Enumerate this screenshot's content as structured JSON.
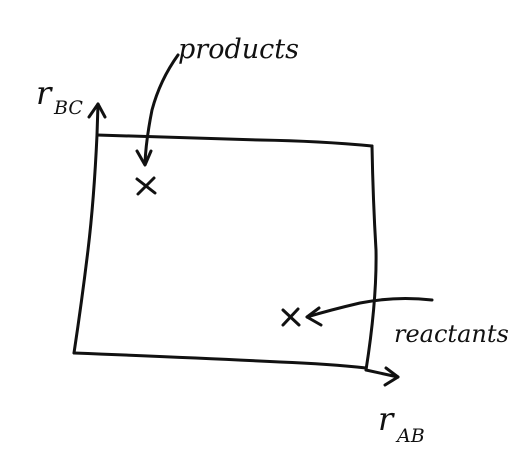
{
  "diagram": {
    "y_axis_label": "r",
    "y_axis_subscript": "BC",
    "x_axis_label": "r",
    "x_axis_subscript": "AB",
    "products_label": "products",
    "reactants_label": "reactants",
    "ink_color": "#111111",
    "background_color": "#ffffff"
  }
}
